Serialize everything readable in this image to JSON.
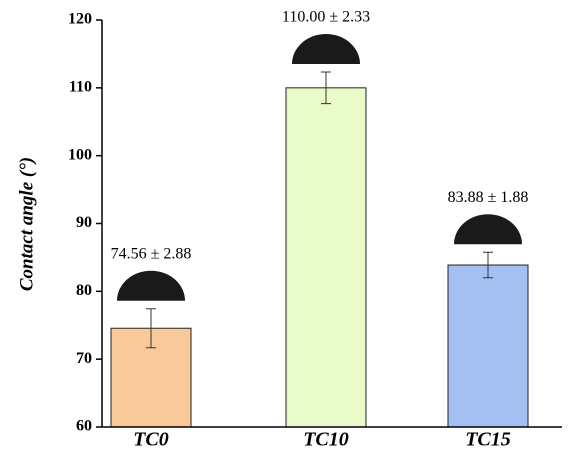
{
  "chart_data": {
    "type": "bar",
    "ylabel": "Contact angle (°)",
    "categories": [
      "TC0",
      "TC10",
      "TC15"
    ],
    "values": [
      74.56,
      110,
      83.88
    ],
    "errors": [
      2.88,
      2.33,
      1.88
    ],
    "value_labels": [
      "74.56 ± 2.88",
      "110.00 ± 2.33",
      "83.88 ± 1.88"
    ],
    "colors": [
      "#f9c99a",
      "#e8fbc8",
      "#a4bff2"
    ],
    "ylim": [
      60,
      120
    ],
    "yticks": [
      60,
      70,
      80,
      90,
      100,
      110,
      120
    ]
  }
}
